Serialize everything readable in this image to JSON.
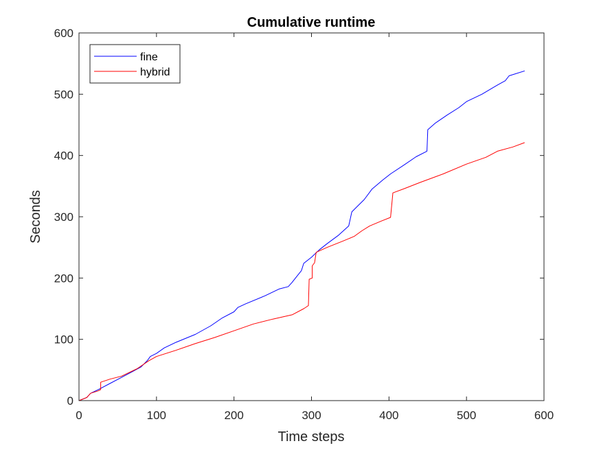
{
  "chart_data": {
    "type": "line",
    "title": "Cumulative runtime",
    "xlabel": "Time steps",
    "ylabel": "Seconds",
    "xlim": [
      0,
      600
    ],
    "ylim": [
      0,
      600
    ],
    "xticks": [
      0,
      100,
      200,
      300,
      400,
      500,
      600
    ],
    "yticks": [
      0,
      100,
      200,
      300,
      400,
      500,
      600
    ],
    "xtick_labels": [
      "0",
      "100",
      "200",
      "300",
      "400",
      "500",
      "600"
    ],
    "ytick_labels": [
      "0",
      "100",
      "200",
      "300",
      "400",
      "500",
      "600"
    ],
    "grid": false,
    "legend_position": "top-left",
    "series": [
      {
        "name": "fine",
        "color": "#0000ff",
        "points": [
          [
            0,
            0
          ],
          [
            10,
            5
          ],
          [
            15,
            12
          ],
          [
            25,
            18
          ],
          [
            40,
            28
          ],
          [
            55,
            38
          ],
          [
            70,
            48
          ],
          [
            80,
            55
          ],
          [
            88,
            65
          ],
          [
            92,
            72
          ],
          [
            100,
            77
          ],
          [
            110,
            86
          ],
          [
            125,
            95
          ],
          [
            150,
            108
          ],
          [
            170,
            122
          ],
          [
            185,
            135
          ],
          [
            200,
            145
          ],
          [
            205,
            152
          ],
          [
            215,
            158
          ],
          [
            240,
            171
          ],
          [
            258,
            182
          ],
          [
            270,
            186
          ],
          [
            275,
            193
          ],
          [
            280,
            201
          ],
          [
            287,
            212
          ],
          [
            290,
            224
          ],
          [
            300,
            234
          ],
          [
            310,
            246
          ],
          [
            320,
            256
          ],
          [
            335,
            270
          ],
          [
            348,
            285
          ],
          [
            352,
            308
          ],
          [
            360,
            318
          ],
          [
            368,
            328
          ],
          [
            378,
            345
          ],
          [
            392,
            360
          ],
          [
            402,
            370
          ],
          [
            420,
            385
          ],
          [
            435,
            398
          ],
          [
            449,
            407
          ],
          [
            450,
            442
          ],
          [
            460,
            453
          ],
          [
            475,
            466
          ],
          [
            490,
            478
          ],
          [
            500,
            488
          ],
          [
            520,
            500
          ],
          [
            540,
            515
          ],
          [
            550,
            522
          ],
          [
            555,
            530
          ],
          [
            575,
            538
          ]
        ]
      },
      {
        "name": "hybrid",
        "color": "#ff0000",
        "points": [
          [
            0,
            0
          ],
          [
            10,
            5
          ],
          [
            15,
            12
          ],
          [
            25,
            16
          ],
          [
            28,
            18
          ],
          [
            28,
            30
          ],
          [
            40,
            35
          ],
          [
            55,
            40
          ],
          [
            75,
            52
          ],
          [
            90,
            65
          ],
          [
            100,
            72
          ],
          [
            125,
            82
          ],
          [
            150,
            93
          ],
          [
            175,
            103
          ],
          [
            200,
            114
          ],
          [
            225,
            125
          ],
          [
            250,
            133
          ],
          [
            275,
            140
          ],
          [
            290,
            150
          ],
          [
            296,
            155
          ],
          [
            297,
            198
          ],
          [
            301,
            200
          ],
          [
            301,
            220
          ],
          [
            304,
            225
          ],
          [
            306,
            242
          ],
          [
            320,
            250
          ],
          [
            340,
            260
          ],
          [
            355,
            268
          ],
          [
            365,
            277
          ],
          [
            375,
            285
          ],
          [
            390,
            293
          ],
          [
            402,
            299
          ],
          [
            405,
            339
          ],
          [
            420,
            346
          ],
          [
            440,
            356
          ],
          [
            470,
            370
          ],
          [
            500,
            386
          ],
          [
            525,
            397
          ],
          [
            540,
            407
          ],
          [
            560,
            414
          ],
          [
            575,
            421
          ]
        ]
      }
    ]
  }
}
